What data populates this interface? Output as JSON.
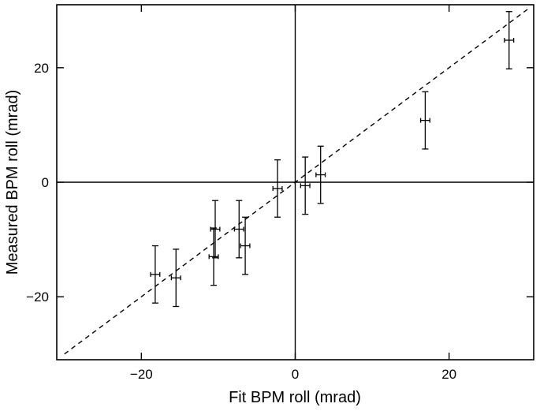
{
  "chart_data": {
    "type": "scatter",
    "title": "",
    "xlabel": "Fit BPM roll (mrad)",
    "ylabel": "Measured BPM roll (mrad)",
    "xlim": [
      -31,
      31
    ],
    "ylim": [
      -31,
      31
    ],
    "xticks": [
      -20,
      0,
      20
    ],
    "yticks": [
      -20,
      0,
      20
    ],
    "xtick_labels": [
      "−20",
      "0",
      "20"
    ],
    "ytick_labels": [
      "−20",
      "0",
      "20"
    ],
    "zero_lines": true,
    "grid": false,
    "reference_line": {
      "style": "dashed",
      "slope": 1,
      "intercept": 0
    },
    "points": [
      {
        "x": -18.2,
        "y": -16.1,
        "xerr": 0.6,
        "yerr": 5.0
      },
      {
        "x": -15.5,
        "y": -16.7,
        "xerr": 0.6,
        "yerr": 5.0
      },
      {
        "x": -10.6,
        "y": -13.0,
        "xerr": 0.6,
        "yerr": 5.0
      },
      {
        "x": -10.4,
        "y": -8.2,
        "xerr": 0.6,
        "yerr": 5.0
      },
      {
        "x": -7.3,
        "y": -8.2,
        "xerr": 0.6,
        "yerr": 5.0
      },
      {
        "x": -6.5,
        "y": -11.1,
        "xerr": 0.6,
        "yerr": 5.0
      },
      {
        "x": -2.3,
        "y": -1.1,
        "xerr": 0.6,
        "yerr": 5.0
      },
      {
        "x": 1.3,
        "y": -0.6,
        "xerr": 0.6,
        "yerr": 5.0
      },
      {
        "x": 3.3,
        "y": 1.3,
        "xerr": 0.6,
        "yerr": 5.0
      },
      {
        "x": 16.9,
        "y": 10.8,
        "xerr": 0.6,
        "yerr": 5.0
      },
      {
        "x": 27.8,
        "y": 24.8,
        "xerr": 0.6,
        "yerr": 5.0
      }
    ]
  }
}
